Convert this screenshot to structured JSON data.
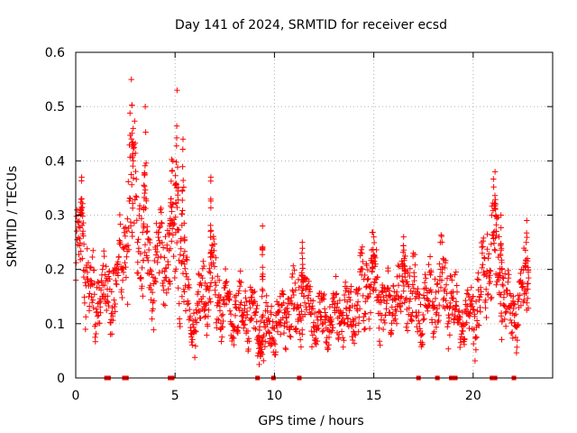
{
  "chart_data": {
    "type": "scatter",
    "title": "Day 141 of 2024, SRMTID for receiver ecsd",
    "xlabel": "GPS time / hours",
    "ylabel": "SRMTID / TECUs",
    "xlim": [
      0,
      24
    ],
    "ylim": [
      0,
      0.6
    ],
    "xticks": [
      0,
      5,
      10,
      15,
      20
    ],
    "xtick_labels": [
      "0",
      "5",
      "10",
      "15",
      "20"
    ],
    "yticks": [
      0,
      0.1,
      0.2,
      0.3,
      0.4,
      0.5,
      0.6
    ],
    "ytick_labels": [
      "0",
      "0.1",
      "0.2",
      "0.3",
      "0.4",
      "0.5",
      "0.6"
    ],
    "grid": true,
    "marker": "+",
    "series_color": "#ff0000",
    "zero_markers_x": [
      1.55,
      1.65,
      2.45,
      2.55,
      4.75,
      4.85,
      9.15,
      9.95,
      11.25,
      17.25,
      18.2,
      18.9,
      19.1,
      20.95,
      21.05,
      21.1,
      22.05
    ],
    "envelope": {
      "x": [
        0,
        0.2,
        0.5,
        0.8,
        1.0,
        1.3,
        1.6,
        2.0,
        2.4,
        2.6,
        2.8,
        3.0,
        3.2,
        3.5,
        3.8,
        4.0,
        4.4,
        4.7,
        5.0,
        5.2,
        5.4,
        5.6,
        6.0,
        6.4,
        6.8,
        7.2,
        7.6,
        8.0,
        8.4,
        8.8,
        9.2,
        9.5,
        9.8,
        10.2,
        10.6,
        11.0,
        11.4,
        11.8,
        12.2,
        12.6,
        13.0,
        13.4,
        13.8,
        14.2,
        14.6,
        15.0,
        15.4,
        15.8,
        16.2,
        16.6,
        17.0,
        17.4,
        17.8,
        18.2,
        18.6,
        19.0,
        19.4,
        19.8,
        20.2,
        20.5,
        20.8,
        21.0,
        21.2,
        21.5,
        21.8,
        22.1,
        22.4,
        22.8
      ],
      "center": [
        0.22,
        0.27,
        0.2,
        0.15,
        0.12,
        0.17,
        0.15,
        0.17,
        0.22,
        0.3,
        0.33,
        0.3,
        0.27,
        0.24,
        0.18,
        0.2,
        0.22,
        0.24,
        0.27,
        0.24,
        0.22,
        0.14,
        0.1,
        0.15,
        0.18,
        0.16,
        0.13,
        0.12,
        0.13,
        0.12,
        0.09,
        0.08,
        0.09,
        0.1,
        0.12,
        0.13,
        0.15,
        0.13,
        0.1,
        0.11,
        0.12,
        0.12,
        0.11,
        0.14,
        0.16,
        0.18,
        0.14,
        0.12,
        0.15,
        0.18,
        0.15,
        0.12,
        0.14,
        0.16,
        0.17,
        0.14,
        0.1,
        0.11,
        0.13,
        0.17,
        0.23,
        0.25,
        0.22,
        0.16,
        0.13,
        0.12,
        0.14,
        0.19
      ],
      "spread": [
        0.05,
        0.06,
        0.06,
        0.05,
        0.05,
        0.04,
        0.05,
        0.05,
        0.06,
        0.1,
        0.12,
        0.09,
        0.08,
        0.07,
        0.05,
        0.06,
        0.06,
        0.07,
        0.1,
        0.09,
        0.08,
        0.05,
        0.04,
        0.05,
        0.06,
        0.05,
        0.04,
        0.04,
        0.04,
        0.04,
        0.04,
        0.04,
        0.04,
        0.04,
        0.04,
        0.05,
        0.05,
        0.04,
        0.04,
        0.04,
        0.04,
        0.04,
        0.04,
        0.05,
        0.06,
        0.06,
        0.05,
        0.04,
        0.05,
        0.06,
        0.05,
        0.04,
        0.05,
        0.05,
        0.06,
        0.05,
        0.03,
        0.04,
        0.05,
        0.06,
        0.07,
        0.08,
        0.07,
        0.05,
        0.04,
        0.04,
        0.05,
        0.06
      ],
      "samples_per_hour": 70
    },
    "peaks": [
      {
        "x": 2.8,
        "y": 0.55,
        "width": 0.12
      },
      {
        "x": 3.5,
        "y": 0.5,
        "width": 0.1
      },
      {
        "x": 5.1,
        "y": 0.53,
        "width": 0.08
      },
      {
        "x": 5.4,
        "y": 0.44,
        "width": 0.08
      },
      {
        "x": 4.8,
        "y": 0.33,
        "width": 0.1
      },
      {
        "x": 0.3,
        "y": 0.37,
        "width": 0.1
      },
      {
        "x": 6.8,
        "y": 0.37,
        "width": 0.02
      },
      {
        "x": 21.1,
        "y": 0.38,
        "width": 0.08
      },
      {
        "x": 21.4,
        "y": 0.3,
        "width": 0.05
      },
      {
        "x": 22.7,
        "y": 0.29,
        "width": 0.08
      },
      {
        "x": 15.0,
        "y": 0.26,
        "width": 0.1
      },
      {
        "x": 16.5,
        "y": 0.26,
        "width": 0.08
      },
      {
        "x": 9.4,
        "y": 0.28,
        "width": 0.03
      },
      {
        "x": 11.4,
        "y": 0.25,
        "width": 0.05
      },
      {
        "x": 9.3,
        "y": 0.04,
        "width": 0.1
      }
    ]
  }
}
